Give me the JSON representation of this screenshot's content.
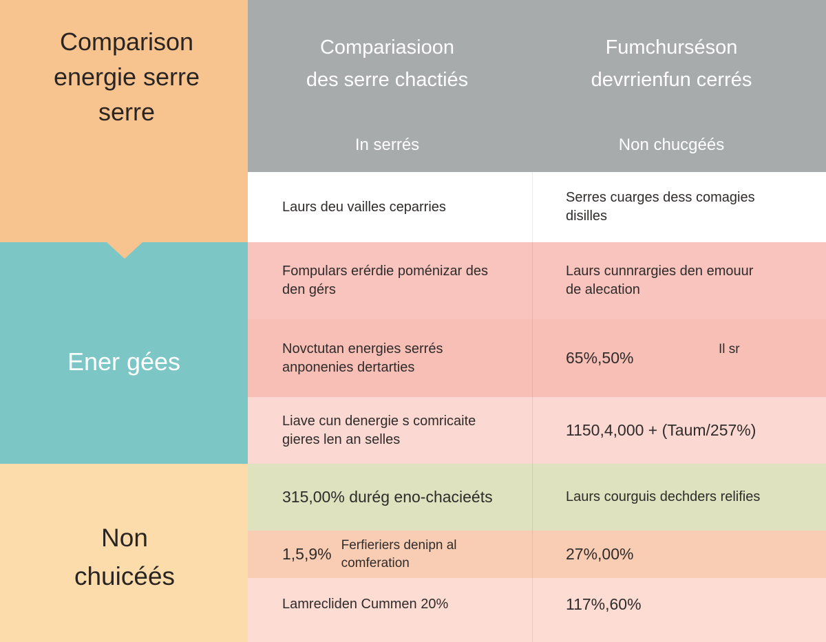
{
  "left": {
    "top_title": [
      "Comparison",
      "energie serre",
      "serre"
    ],
    "mid_title": "Ener gées",
    "bottom_title": [
      "Non",
      "chuicéés"
    ]
  },
  "header": {
    "col1_title": [
      "Compariasioon",
      "des serre chactiés"
    ],
    "col2_title": [
      "Fumchurséson",
      "devrrienfun cerrés"
    ],
    "col1_sub": "In serrés",
    "col2_sub": "Non chucgéés"
  },
  "rows": [
    {
      "left": [
        "Laurs deu vailles ceparries"
      ],
      "right": [
        "Serres cuarges dess comagies",
        "disilles"
      ],
      "bg": "#ffffff"
    },
    {
      "left": [
        "Fompulars erérdie poménizar des",
        "den gérs"
      ],
      "right": [
        "Laurs cunnrargies den emouur",
        "de alecation"
      ],
      "bg": "#f8c4bd"
    },
    {
      "left": [
        "Novctutan energies serrés",
        "anponenies dertarties"
      ],
      "right": [
        "65%,50%"
      ],
      "right_note": "Il sr",
      "bg": "#f7bfb6"
    },
    {
      "left": [
        "Liave cun denergie s comricaite",
        "gieres len an selles"
      ],
      "right": [
        "1150,4,000 + (Taum/257%)"
      ],
      "bg": "#fbd9d2"
    },
    {
      "left": [
        "315,00% durég eno-chacieéts"
      ],
      "right": [
        "Laurs courguis dechders relifies"
      ],
      "bg": "#dfe2bf"
    },
    {
      "left_value": "1,5,9%",
      "left": [
        "Ferfieriers denipn al",
        "comferation"
      ],
      "right": [
        "27%,00%"
      ],
      "bg": "#f9cdb3"
    },
    {
      "left": [
        "Lamrecliden Cummen 20%"
      ],
      "right": [
        "117%,60%"
      ],
      "bg": "#fcdcd3"
    }
  ]
}
